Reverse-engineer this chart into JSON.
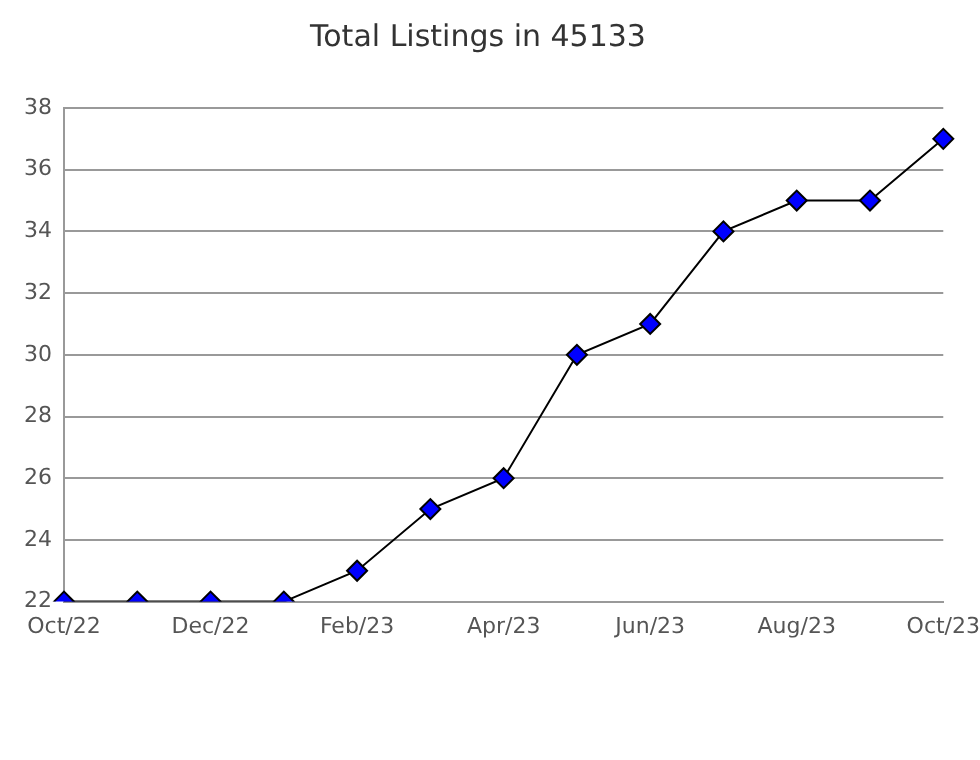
{
  "chart_data": {
    "type": "line",
    "title": "Total Listings in 45133",
    "categories": [
      "Oct/22",
      null,
      "Dec/22",
      null,
      "Feb/23",
      null,
      "Apr/23",
      null,
      "Jun/23",
      null,
      "Aug/23",
      null,
      "Oct/23"
    ],
    "series": [
      {
        "color": "#0000ff",
        "values": [
          22,
          22,
          22,
          22,
          23,
          25,
          26,
          30,
          31,
          34,
          35,
          35,
          37
        ]
      }
    ],
    "ylim": [
      22,
      38
    ],
    "yticks": [
      22,
      24,
      26,
      28,
      30,
      32,
      34,
      36,
      38
    ],
    "grid": "y",
    "legend": false,
    "marker": "diamond",
    "line_style": "solid"
  }
}
